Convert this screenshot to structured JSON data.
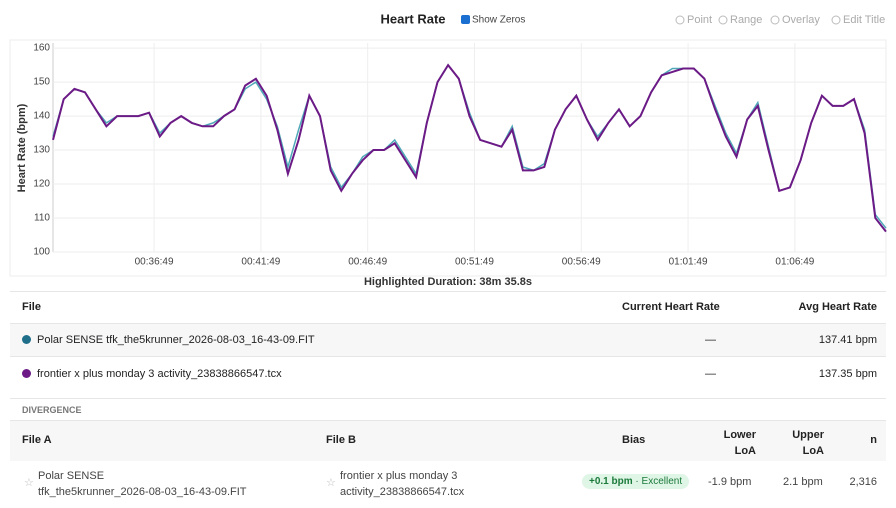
{
  "chart_data": {
    "type": "line",
    "title": "Heart Rate",
    "y_label": "Heart Rate (bpm)",
    "x": [
      1925,
      1955,
      1985,
      2015,
      2045,
      2075,
      2105,
      2135,
      2165,
      2195,
      2225,
      2255,
      2285,
      2315,
      2345,
      2375,
      2405,
      2435,
      2465,
      2495,
      2525,
      2555,
      2585,
      2615,
      2645,
      2675,
      2705,
      2735,
      2765,
      2795,
      2825,
      2855,
      2885,
      2915,
      2945,
      2975,
      3005,
      3035,
      3065,
      3095,
      3125,
      3155,
      3185,
      3215,
      3245,
      3275,
      3305,
      3335,
      3365,
      3395,
      3425,
      3455,
      3485,
      3515,
      3545,
      3575,
      3605,
      3635,
      3665,
      3695,
      3725,
      3755,
      3785,
      3815,
      3845,
      3875,
      3905,
      3935,
      3965,
      3995,
      4025,
      4055,
      4085,
      4115,
      4145,
      4175,
      4205,
      4235,
      4265
    ],
    "series": [
      {
        "name": "Polar SENSE tfk_the5krunner_2026-08-03_16-43-09.FIT",
        "color": "#4fa8b8",
        "values": [
          134,
          145,
          148,
          147,
          142,
          138,
          140,
          140,
          140,
          141,
          135,
          138,
          140,
          138,
          137,
          138,
          140,
          142,
          148,
          150,
          145,
          137,
          125,
          136,
          146,
          140,
          125,
          119,
          123,
          128,
          130,
          130,
          133,
          128,
          123,
          138,
          150,
          155,
          151,
          141,
          133,
          132,
          131,
          137,
          125,
          124,
          126,
          136,
          142,
          146,
          139,
          134,
          138,
          142,
          137,
          140,
          147,
          152,
          154,
          154,
          154,
          151,
          143,
          135,
          129,
          139,
          144,
          131,
          118,
          119,
          127,
          138,
          146,
          143,
          143,
          145,
          136,
          111,
          107
        ]
      },
      {
        "name": "frontier x plus monday 3 activity_23838866547.tcx",
        "color": "#6b1a86",
        "values": [
          133,
          145,
          148,
          147,
          142,
          137,
          140,
          140,
          140,
          141,
          134,
          138,
          140,
          138,
          137,
          137,
          140,
          142,
          149,
          151,
          146,
          136,
          123,
          133,
          146,
          140,
          124,
          118,
          123,
          127,
          130,
          130,
          132,
          127,
          122,
          138,
          150,
          155,
          151,
          140,
          133,
          132,
          131,
          136,
          124,
          124,
          125,
          136,
          142,
          146,
          139,
          133,
          138,
          142,
          137,
          140,
          147,
          152,
          153,
          154,
          154,
          151,
          142,
          134,
          128,
          139,
          143,
          130,
          118,
          119,
          127,
          138,
          146,
          143,
          143,
          145,
          135,
          110,
          106
        ]
      }
    ],
    "xlim": [
      1925,
      4265
    ],
    "xticks": [
      {
        "value": 2209,
        "label": "00:36:49"
      },
      {
        "value": 2509,
        "label": "00:41:49"
      },
      {
        "value": 2809,
        "label": "00:46:49"
      },
      {
        "value": 3109,
        "label": "00:51:49"
      },
      {
        "value": 3409,
        "label": "00:56:49"
      },
      {
        "value": 3709,
        "label": "01:01:49"
      },
      {
        "value": 4009,
        "label": "01:06:49"
      }
    ],
    "ylim": [
      100,
      161.5
    ],
    "yticks": [
      100,
      110,
      120,
      130,
      140,
      150,
      160
    ],
    "grid": true,
    "footer": "Highlighted Duration: 38m 35.8s"
  },
  "toolbar": {
    "show_zeros": "Show Zeros",
    "buttons": [
      "Point",
      "Range",
      "Overlay",
      "Edit Title"
    ]
  },
  "files_table": {
    "headers": [
      "File",
      "Current Heart Rate",
      "Avg Heart Rate"
    ],
    "rows": [
      [
        "Polar SENSE tfk_the5krunner_2026-08-03_16-43-09.FIT",
        "—",
        "137.41 bpm"
      ],
      [
        "frontier x plus monday 3 activity_23838866547.tcx",
        "—",
        "137.35 bpm"
      ]
    ]
  },
  "divergence": {
    "title": "DIVERGENCE",
    "headers": [
      "File A",
      "File B",
      "Bias",
      "Lower LoA",
      "Upper LoA",
      "n"
    ],
    "row": {
      "file_a": [
        "Polar SENSE",
        "tfk_the5krunner_2026-08-03_16-43-09.FIT"
      ],
      "file_b": [
        "frontier x plus monday 3",
        "activity_23838866547.tcx"
      ],
      "bias": "+0.1 bpm",
      "rating": "Excellent",
      "lower": "-1.9 bpm",
      "upper": "2.1 bpm",
      "n": "2,316"
    }
  }
}
